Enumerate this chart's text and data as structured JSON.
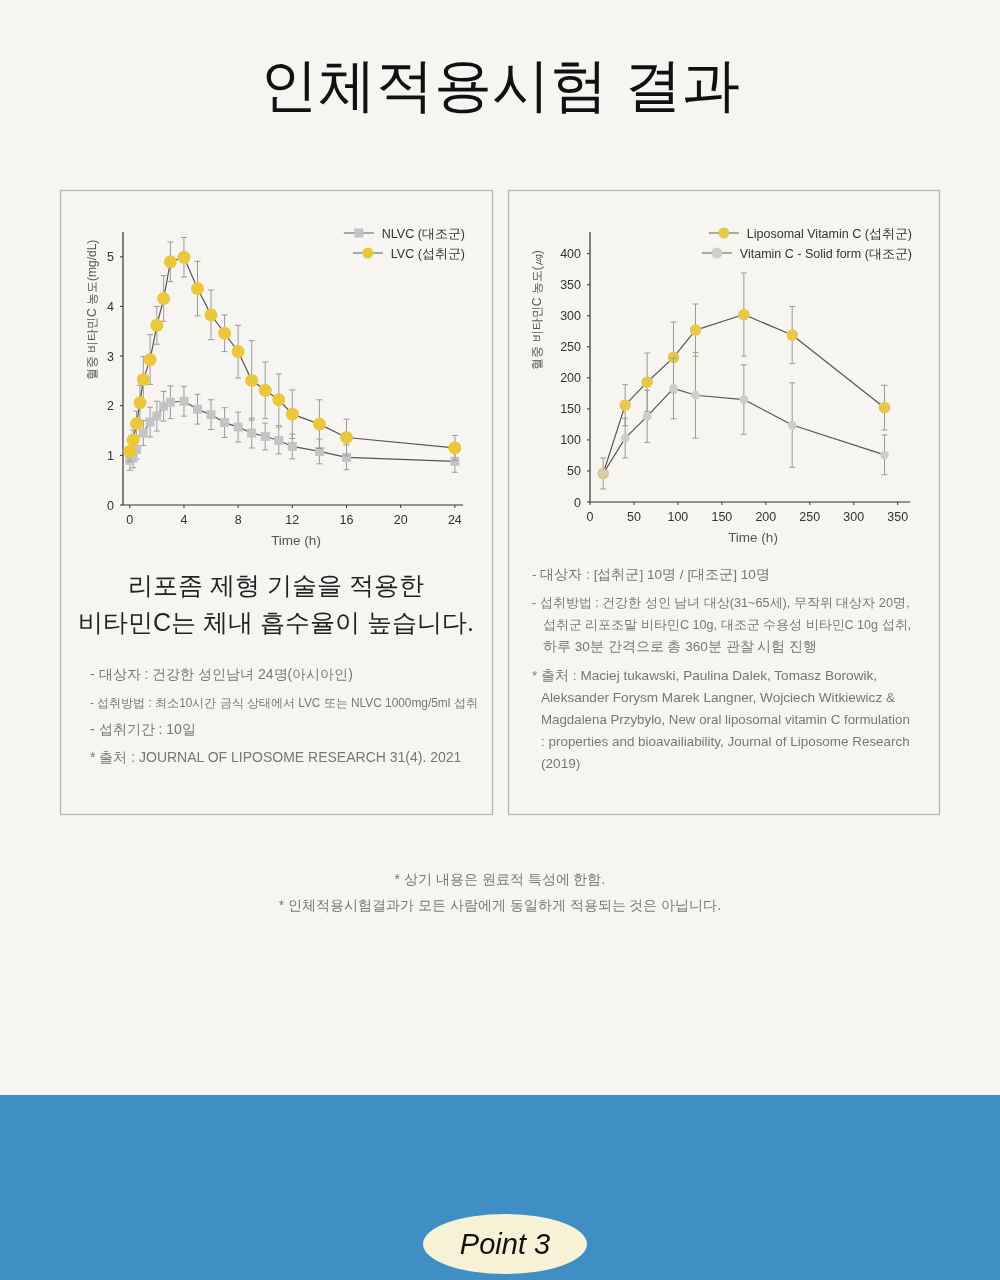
{
  "chart_data": [
    {
      "type": "line",
      "title": "인체적용시험 결과",
      "xlabel": "Time (h)",
      "ylabel": "혈중 비타민C 농도(mg/dL)",
      "xlim": [
        -0.5,
        24.6
      ],
      "ylim": [
        0,
        5.5
      ],
      "xticks": [
        0,
        4,
        8,
        12,
        16,
        20,
        24
      ],
      "yticks": [
        0,
        1,
        2,
        3,
        4,
        5
      ],
      "legend": "top right",
      "line_style": "solid",
      "x": [
        0,
        0.25,
        0.5,
        0.75,
        1,
        1.5,
        2,
        2.5,
        3,
        4,
        5,
        6,
        7,
        8,
        9,
        10,
        11,
        12,
        14,
        16,
        24
      ],
      "series": [
        {
          "name": "NLVC (대조군)",
          "color": "#c4c4c4",
          "marker": "square",
          "values": [
            0.9,
            0.95,
            1.12,
            null,
            1.45,
            1.67,
            1.79,
            1.99,
            2.07,
            2.09,
            1.93,
            1.82,
            1.66,
            1.57,
            1.45,
            1.38,
            1.3,
            1.18,
            1.08,
            0.96,
            0.88
          ],
          "errors": [
            0.2,
            0.2,
            0.2,
            null,
            0.25,
            0.3,
            0.3,
            0.3,
            0.33,
            0.3,
            0.3,
            0.3,
            0.3,
            0.3,
            0.3,
            0.27,
            0.27,
            0.25,
            0.25,
            0.25,
            0.22
          ]
        },
        {
          "name": "LVC (섭취군)",
          "color": "#eac83a",
          "marker": "circle",
          "values": [
            1.08,
            1.31,
            1.64,
            2.06,
            2.53,
            2.93,
            3.62,
            4.16,
            4.9,
            4.99,
            4.36,
            3.83,
            3.46,
            3.09,
            2.51,
            2.31,
            2.12,
            1.83,
            1.63,
            1.36,
            1.15
          ],
          "errors": [
            0.2,
            0.2,
            0.25,
            0.35,
            0.46,
            0.5,
            0.38,
            0.46,
            0.4,
            0.4,
            0.55,
            0.5,
            0.37,
            0.53,
            0.8,
            0.57,
            0.52,
            0.49,
            0.49,
            0.37,
            0.25
          ]
        }
      ],
      "annotations": [
        "리포좀 제형 기술을 적용한",
        "비타민C는 체내 흡수율이 높습니다.",
        "- 대상자 : 건강한 성인남녀 24명(아시아인)",
        "- 섭취방법 : 최소10시간 금식 상태에서 LVC 또는 NLVC 1000mg/5ml 섭취",
        "- 섭취기간 : 10일",
        "* 출처 : JOURNAL OF LIPOSOME RESEARCH 31(4). 2021"
      ]
    },
    {
      "type": "line",
      "xlabel": "Time (h)",
      "ylabel": "혈중 비타민C 농도(㎍)",
      "xlim": [
        0,
        364
      ],
      "ylim": [
        0,
        435
      ],
      "xticks": [
        0,
        50,
        100,
        150,
        200,
        250,
        300,
        350
      ],
      "yticks": [
        0,
        50,
        100,
        150,
        200,
        250,
        300,
        350,
        400
      ],
      "legend": "top right",
      "line_style": "solid",
      "x": [
        15,
        40,
        65,
        95,
        120,
        175,
        230,
        335
      ],
      "series": [
        {
          "name": "Liposomal Vitamin C (섭취군)",
          "color": "#e6c84a",
          "marker": "circle",
          "values": [
            46,
            156,
            193,
            233,
            277,
            302,
            269,
            152
          ],
          "errors": [
            25,
            33,
            47,
            57,
            42,
            67,
            46,
            36
          ]
        },
        {
          "name": "Vitamin C - Solid form (대조군)",
          "color": "#cdcdcd",
          "marker": "circle",
          "values": [
            46,
            103,
            138,
            183,
            172,
            165,
            124,
            76
          ],
          "errors": [
            null,
            32,
            42,
            49,
            69,
            56,
            68,
            32
          ]
        }
      ],
      "annotations": [
        "- 대상자 : [섭취군] 10명 / [대조군] 10명",
        "- 섭취방법 : 건강한 성인 남녀 대상(31~65세), 무작위 대상자 20명,",
        "섭취군 리포조말 비타민C 10g, 대조군 수용성 비타민C 10g 섭취,",
        "하루 30분 간격으로 총 360분 관찰 시험 진행",
        "* 출처 : Maciej tukawski, Paulina Dalek, Tomasz Borowik,",
        "Aleksander Forysm Marek Langner, Wojciech Witkiewicz &",
        "Magdalena Przybylo, New oral liposomal vitamin C formulation",
        ": properties and bioavailiability, Journal of Liposome Research",
        "(2019)",
        "* 상기 내용은 원료적 특성에 한함.",
        "* 인체적용시험결과가 모든 사람에게 동일하게 적용되는 것은 아닙니다.",
        "Point 3"
      ]
    }
  ]
}
